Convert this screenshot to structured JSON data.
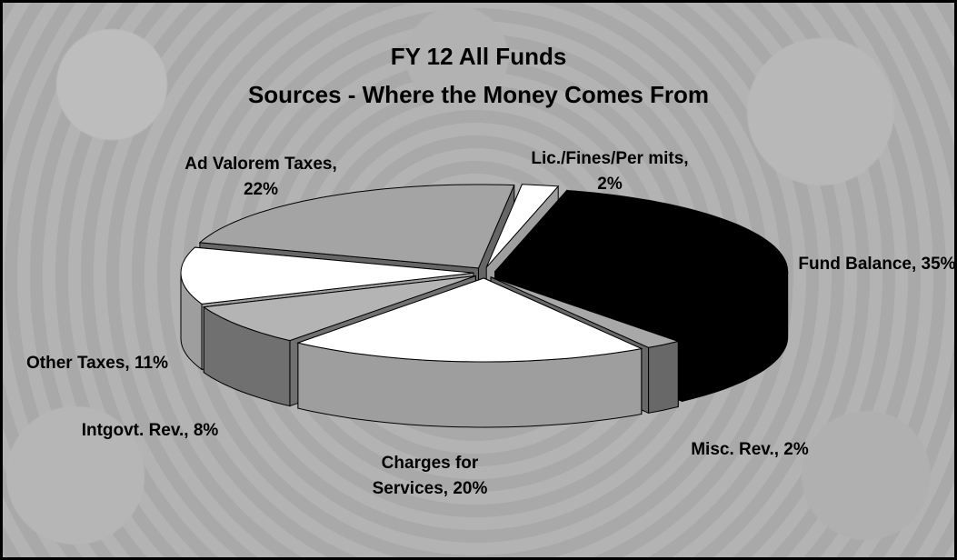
{
  "chart_data": {
    "type": "pie3d",
    "title": "FY 12 All Funds",
    "subtitle": "Sources - Where the Money Comes From",
    "values": [
      2,
      35,
      2,
      20,
      8,
      11,
      22
    ],
    "value_labels": [
      "Lic./Fines/Per mits, 2%",
      "Fund Balance, 35%",
      "Misc. Rev., 2%",
      "Charges for Services, 20%",
      "Intgovt. Rev., 8%",
      "Other Taxes, 11%",
      "Ad Valorem Taxes, 22%"
    ],
    "colors": [
      "#ffffff",
      "#000000",
      "#a8a8a8",
      "#ffffff",
      "#b4b4b4",
      "#ffffff",
      "#a4a4a4"
    ]
  }
}
